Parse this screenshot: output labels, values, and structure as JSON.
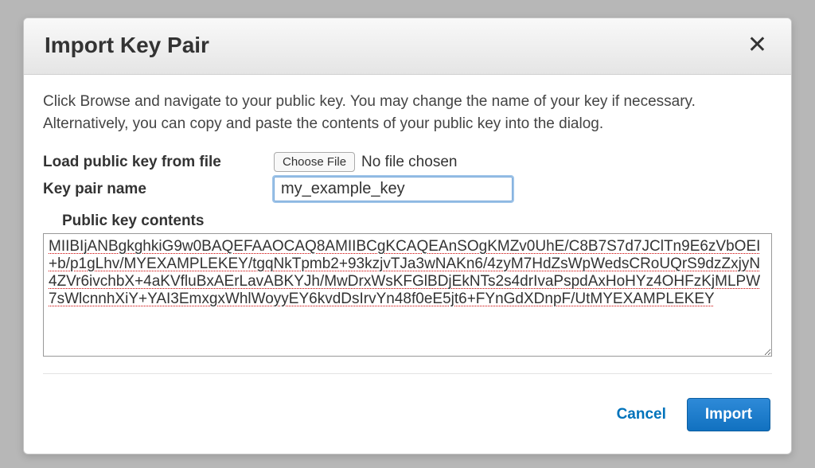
{
  "dialog": {
    "title": "Import Key Pair",
    "instructions": "Click Browse and navigate to your public key. You may change the name of your key if necessary. Alternatively, you can copy and paste the contents of your public key into the dialog.",
    "load_label": "Load public key from file",
    "choose_file_label": "Choose File",
    "no_file_chosen": "No file chosen",
    "keyname_label": "Key pair name",
    "keyname_value": "my_example_key",
    "contents_label": "Public key contents",
    "contents_value": "MIIBIjANBgkghkiG9w0BAQEFAAOCAQ8AMIIBCgKCAQEAnSOgKMZv0UhE/C8B7S7d7JClTn9E6zVbOEI+b/p1gLhv/MYEXAMPLEKEY/tgqNkTpmb2+93kzjvTJa3wNAKn6/4zyM7HdZsWpWedsCRoUQrS9dzZxjyN4ZVr6ivchbX+4aKVfluBxAErLavABKYJh/MwDrxWsKFGlBDjEkNTs2s4drIvaPspdAxHoHYz4OHFzKjMLPW7sWlcnnhXiY+YAI3EmxgxWhlWoyyEY6kvdDsIrvYn48f0eE5jt6+FYnGdXDnpF/UtMYEXAMPLEKEY",
    "cancel_label": "Cancel",
    "import_label": "Import"
  },
  "colors": {
    "overlay_bg": "#b7b7b7",
    "dialog_bg": "#ffffff",
    "header_gradient_top": "#f9f9f9",
    "header_gradient_bottom": "#e5e5e5",
    "primary_button_top": "#2e8ad8",
    "primary_button_bottom": "#1171c0",
    "link_color": "#0073bb",
    "input_focus_border": "#76a7d9",
    "spell_underline": "#cc0000"
  }
}
